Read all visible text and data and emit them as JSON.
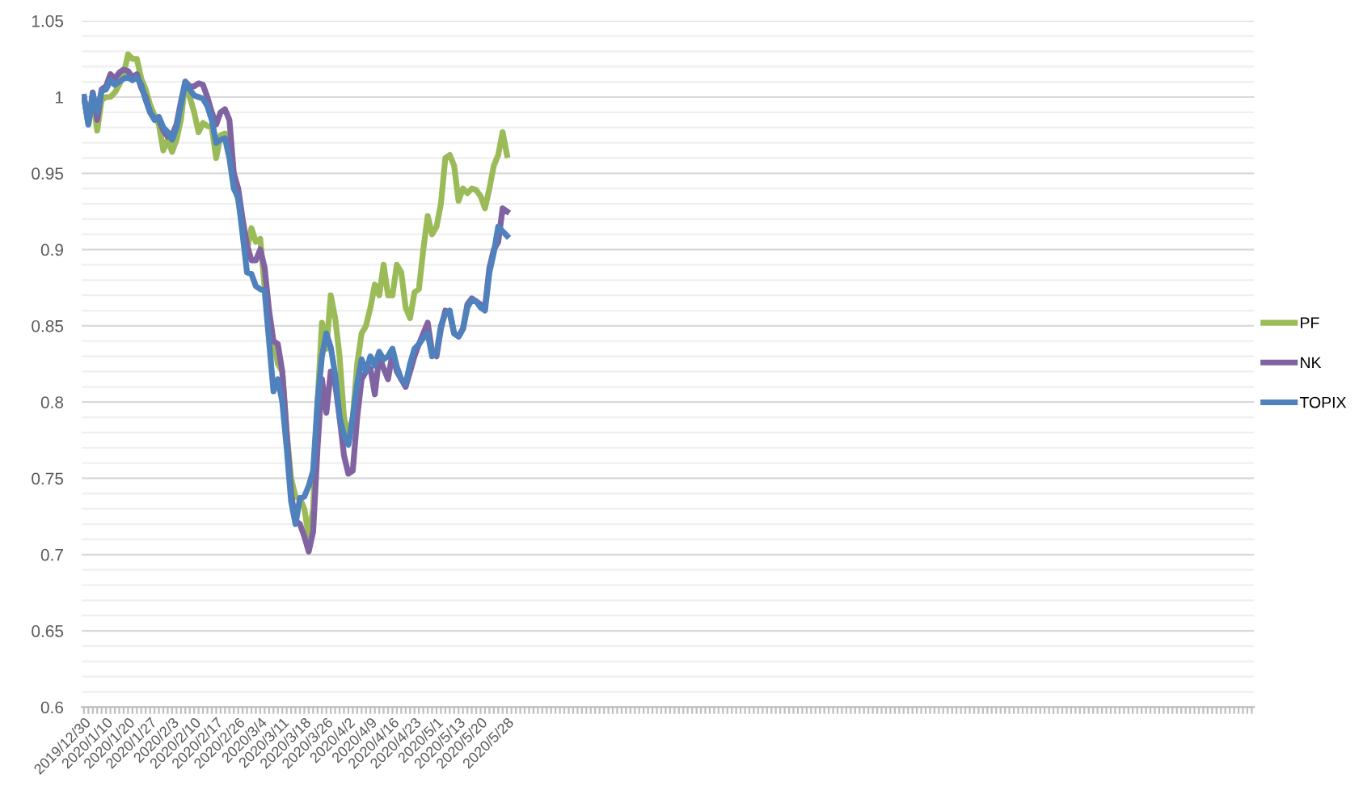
{
  "chart_data": {
    "type": "line",
    "categories": [
      "2019/12/30",
      null,
      null,
      null,
      null,
      "2020/1/10",
      null,
      null,
      null,
      null,
      "2020/1/20",
      null,
      null,
      null,
      null,
      "2020/1/27",
      null,
      null,
      null,
      null,
      "2020/2/3",
      null,
      null,
      null,
      null,
      "2020/2/10",
      null,
      null,
      null,
      null,
      "2020/2/17",
      null,
      null,
      null,
      null,
      "2020/2/26",
      null,
      null,
      null,
      null,
      "2020/3/4",
      null,
      null,
      null,
      null,
      "2020/3/11",
      null,
      null,
      null,
      null,
      "2020/3/18",
      null,
      null,
      null,
      null,
      "2020/3/26",
      null,
      null,
      null,
      null,
      "2020/4/2",
      null,
      null,
      null,
      null,
      "2020/4/9",
      null,
      null,
      null,
      null,
      "2020/4/16",
      null,
      null,
      null,
      null,
      "2020/4/23",
      null,
      null,
      null,
      null,
      "2020/5/1",
      null,
      null,
      null,
      null,
      "2020/5/13",
      null,
      null,
      null,
      null,
      "2020/5/20",
      null,
      null,
      null,
      null,
      null,
      "2020/5/28",
      null,
      null,
      null,
      null,
      null,
      null,
      null,
      null,
      null,
      null,
      null,
      null,
      null,
      null,
      null,
      null,
      null,
      null,
      null,
      null,
      null,
      null,
      null,
      null,
      null,
      null,
      null,
      null,
      null,
      null,
      null,
      null,
      null,
      null,
      null,
      null,
      null,
      null,
      null,
      null,
      null,
      null,
      null,
      null,
      null,
      null,
      null,
      null,
      null,
      null,
      null,
      null,
      null,
      null,
      null,
      null,
      null,
      null,
      null,
      null,
      null,
      null,
      null,
      null,
      null,
      null,
      null,
      null,
      null,
      null,
      null,
      null,
      null,
      null,
      null,
      null,
      null,
      null,
      null,
      null,
      null,
      null,
      null,
      null,
      null,
      null,
      null,
      null,
      null,
      null,
      null,
      null,
      null,
      null,
      null,
      null,
      null,
      null,
      null,
      null,
      null,
      null,
      null,
      null,
      null,
      null,
      null,
      null,
      null,
      null,
      null,
      null,
      null,
      null,
      null,
      null,
      null,
      null,
      null,
      null,
      null,
      null,
      null,
      null,
      null,
      null,
      null,
      null,
      null,
      null,
      null,
      null,
      null,
      null,
      null,
      null,
      null,
      null,
      null,
      null,
      null,
      null,
      null,
      null,
      null,
      null,
      null,
      null,
      null,
      null,
      null,
      null,
      null,
      null,
      null,
      null,
      null,
      null,
      null,
      null,
      null,
      null,
      null,
      null,
      null,
      null,
      null,
      null,
      null
    ],
    "series": [
      {
        "name": "PF",
        "color": "#9bbb59",
        "values": [
          1.0,
          0.982,
          1.0,
          0.978,
          0.998,
          1.0,
          1.0,
          1.003,
          1.008,
          1.015,
          1.028,
          1.025,
          1.025,
          1.012,
          1.005,
          0.995,
          0.988,
          0.982,
          0.965,
          0.972,
          0.964,
          0.972,
          0.985,
          1.01,
          1.0,
          0.99,
          0.977,
          0.983,
          0.981,
          0.98,
          0.96,
          0.975,
          0.976,
          0.97,
          0.945,
          0.932,
          0.915,
          0.9,
          0.914,
          0.905,
          0.907,
          0.875,
          0.85,
          0.84,
          0.825,
          0.82,
          0.78,
          0.75,
          0.738,
          0.737,
          0.73,
          0.712,
          0.73,
          0.8,
          0.852,
          0.835,
          0.87,
          0.855,
          0.83,
          0.79,
          0.777,
          0.79,
          0.825,
          0.845,
          0.85,
          0.862,
          0.877,
          0.87,
          0.89,
          0.87,
          0.87,
          0.89,
          0.885,
          0.862,
          0.855,
          0.872,
          0.874,
          0.9,
          0.922,
          0.91,
          0.915,
          0.93,
          0.96,
          0.962,
          0.955,
          0.932,
          0.94,
          0.937,
          0.94,
          0.939,
          0.935,
          0.927,
          0.94,
          0.955,
          0.962,
          0.977,
          0.962,
          null,
          null,
          null,
          null,
          null,
          null,
          null,
          null,
          null,
          null,
          null,
          null,
          null,
          null,
          null,
          null,
          null,
          null,
          null,
          null,
          null,
          null,
          null,
          null,
          null,
          null,
          null,
          null,
          null,
          null,
          null,
          null,
          null,
          null,
          null,
          null,
          null,
          null,
          null,
          null,
          null,
          null,
          null,
          null,
          null,
          null,
          null,
          null,
          null,
          null,
          null,
          null,
          null,
          null,
          null,
          null,
          null,
          null,
          null,
          null,
          null,
          null,
          null,
          null,
          null,
          null,
          null,
          null,
          null,
          null,
          null,
          null,
          null,
          null,
          null,
          null,
          null,
          null,
          null,
          null,
          null,
          null,
          null,
          null,
          null,
          null,
          null,
          null,
          null,
          null,
          null,
          null,
          null,
          null,
          null,
          null,
          null,
          null,
          null,
          null,
          null,
          null,
          null,
          null,
          null,
          null,
          null,
          null,
          null,
          null,
          null,
          null,
          null,
          null,
          null,
          null,
          null,
          null,
          null,
          null,
          null,
          null,
          null,
          null,
          null,
          null,
          null,
          null,
          null,
          null,
          null,
          null,
          null,
          null,
          null,
          null,
          null,
          null,
          null,
          null,
          null,
          null,
          null,
          null,
          null,
          null,
          null,
          null,
          null,
          null,
          null,
          null,
          null,
          null,
          null,
          null,
          null,
          null,
          null,
          null,
          null,
          null,
          null,
          null,
          null,
          null,
          null,
          null,
          null
        ]
      },
      {
        "name": "NK",
        "color": "#8064a2",
        "values": [
          1.0,
          0.983,
          1.003,
          0.985,
          1.005,
          1.007,
          1.015,
          1.012,
          1.016,
          1.018,
          1.017,
          1.013,
          1.015,
          1.006,
          1.0,
          0.99,
          0.986,
          0.985,
          0.978,
          0.974,
          0.975,
          0.982,
          0.997,
          1.01,
          1.007,
          1.007,
          1.009,
          1.008,
          1.0,
          0.99,
          0.982,
          0.99,
          0.992,
          0.985,
          0.95,
          0.94,
          0.92,
          0.903,
          0.893,
          0.893,
          0.9,
          0.888,
          0.86,
          0.84,
          0.838,
          0.82,
          0.78,
          0.74,
          0.722,
          0.72,
          0.712,
          0.702,
          0.715,
          0.77,
          0.815,
          0.793,
          0.82,
          0.812,
          0.79,
          0.765,
          0.753,
          0.755,
          0.79,
          0.815,
          0.82,
          0.822,
          0.805,
          0.83,
          0.822,
          0.815,
          0.832,
          0.82,
          0.815,
          0.81,
          0.82,
          0.83,
          0.838,
          0.845,
          0.852,
          0.833,
          0.83,
          0.848,
          0.86,
          0.858,
          0.845,
          0.843,
          0.848,
          0.864,
          0.868,
          0.866,
          0.864,
          0.862,
          0.888,
          0.9,
          0.905,
          0.927,
          0.925,
          null,
          null,
          null,
          null,
          null,
          null,
          null,
          null,
          null,
          null,
          null,
          null,
          null,
          null,
          null,
          null,
          null,
          null,
          null,
          null,
          null,
          null,
          null,
          null,
          null,
          null,
          null,
          null,
          null,
          null,
          null,
          null,
          null,
          null,
          null,
          null,
          null,
          null,
          null,
          null,
          null,
          null,
          null,
          null,
          null,
          null,
          null,
          null,
          null,
          null,
          null,
          null,
          null,
          null,
          null,
          null,
          null,
          null,
          null,
          null,
          null,
          null,
          null,
          null,
          null,
          null,
          null,
          null,
          null,
          null,
          null,
          null,
          null,
          null,
          null,
          null,
          null,
          null,
          null,
          null,
          null,
          null,
          null,
          null,
          null,
          null,
          null,
          null,
          null,
          null,
          null,
          null,
          null,
          null,
          null,
          null,
          null,
          null,
          null,
          null,
          null,
          null,
          null,
          null,
          null,
          null,
          null,
          null,
          null,
          null,
          null,
          null,
          null,
          null,
          null,
          null,
          null,
          null,
          null,
          null,
          null,
          null,
          null,
          null,
          null,
          null,
          null,
          null,
          null,
          null,
          null,
          null,
          null,
          null,
          null,
          null,
          null,
          null,
          null,
          null,
          null,
          null,
          null,
          null,
          null,
          null,
          null,
          null,
          null,
          null,
          null,
          null,
          null,
          null,
          null,
          null,
          null,
          null,
          null,
          null,
          null,
          null,
          null,
          null,
          null,
          null,
          null,
          null,
          null
        ]
      },
      {
        "name": "TOPIX",
        "color": "#4f81bd",
        "values": [
          1.0,
          0.982,
          1.002,
          0.99,
          1.004,
          1.005,
          1.011,
          1.008,
          1.01,
          1.012,
          1.013,
          1.011,
          1.013,
          1.008,
          0.998,
          0.99,
          0.985,
          0.987,
          0.98,
          0.977,
          0.972,
          0.98,
          0.995,
          1.01,
          1.005,
          1.001,
          1.0,
          0.999,
          0.994,
          0.985,
          0.97,
          0.972,
          0.973,
          0.96,
          0.94,
          0.934,
          0.91,
          0.885,
          0.884,
          0.876,
          0.874,
          0.873,
          0.84,
          0.807,
          0.815,
          0.8,
          0.77,
          0.735,
          0.72,
          0.737,
          0.738,
          0.745,
          0.755,
          0.8,
          0.83,
          0.845,
          0.836,
          0.818,
          0.79,
          0.778,
          0.772,
          0.79,
          0.812,
          0.828,
          0.82,
          0.83,
          0.824,
          0.833,
          0.828,
          0.83,
          0.835,
          0.823,
          0.815,
          0.812,
          0.825,
          0.835,
          0.838,
          0.842,
          0.845,
          0.83,
          0.832,
          0.85,
          0.858,
          0.86,
          0.845,
          0.843,
          0.848,
          0.862,
          0.867,
          0.866,
          0.862,
          0.86,
          0.885,
          0.898,
          0.915,
          0.912,
          0.909,
          null,
          null,
          null,
          null,
          null,
          null,
          null,
          null,
          null,
          null,
          null,
          null,
          null,
          null,
          null,
          null,
          null,
          null,
          null,
          null,
          null,
          null,
          null,
          null,
          null,
          null,
          null,
          null,
          null,
          null,
          null,
          null,
          null,
          null,
          null,
          null,
          null,
          null,
          null,
          null,
          null,
          null,
          null,
          null,
          null,
          null,
          null,
          null,
          null,
          null,
          null,
          null,
          null,
          null,
          null,
          null,
          null,
          null,
          null,
          null,
          null,
          null,
          null,
          null,
          null,
          null,
          null,
          null,
          null,
          null,
          null,
          null,
          null,
          null,
          null,
          null,
          null,
          null,
          null,
          null,
          null,
          null,
          null,
          null,
          null,
          null,
          null,
          null,
          null,
          null,
          null,
          null,
          null,
          null,
          null,
          null,
          null,
          null,
          null,
          null,
          null,
          null,
          null,
          null,
          null,
          null,
          null,
          null,
          null,
          null,
          null,
          null,
          null,
          null,
          null,
          null,
          null,
          null,
          null,
          null,
          null,
          null,
          null,
          null,
          null,
          null,
          null,
          null,
          null,
          null,
          null,
          null,
          null,
          null,
          null,
          null,
          null,
          null,
          null,
          null,
          null,
          null,
          null,
          null,
          null,
          null,
          null,
          null,
          null,
          null,
          null,
          null,
          null,
          null,
          null,
          null,
          null,
          null,
          null,
          null,
          null,
          null,
          null,
          null,
          null,
          null,
          null,
          null,
          null
        ]
      }
    ],
    "ylim": [
      0.6,
      1.05
    ],
    "yticks": [
      0.6,
      {
        "value": 0.61,
        "label": null
      },
      {
        "value": 0.62,
        "label": null
      },
      {
        "value": 0.63,
        "label": null
      },
      {
        "value": 0.64,
        "label": null
      },
      0.65,
      {
        "value": 0.66,
        "label": null
      },
      {
        "value": 0.67,
        "label": null
      },
      {
        "value": 0.68,
        "label": null
      },
      {
        "value": 0.69,
        "label": null
      },
      0.7,
      {
        "value": 0.71,
        "label": null
      },
      {
        "value": 0.72,
        "label": null
      },
      {
        "value": 0.73,
        "label": null
      },
      {
        "value": 0.74,
        "label": null
      },
      0.75,
      {
        "value": 0.76,
        "label": null
      },
      {
        "value": 0.77,
        "label": null
      },
      {
        "value": 0.78,
        "label": null
      },
      {
        "value": 0.79,
        "label": null
      },
      0.8,
      {
        "value": 0.81,
        "label": null
      },
      {
        "value": 0.82,
        "label": null
      },
      {
        "value": 0.83,
        "label": null
      },
      {
        "value": 0.84,
        "label": null
      },
      0.85,
      {
        "value": 0.86,
        "label": null
      },
      {
        "value": 0.87,
        "label": null
      },
      {
        "value": 0.88,
        "label": null
      },
      {
        "value": 0.89,
        "label": null
      },
      0.9,
      {
        "value": 0.91,
        "label": null
      },
      {
        "value": 0.92,
        "label": null
      },
      {
        "value": 0.93,
        "label": null
      },
      {
        "value": 0.94,
        "label": null
      },
      0.95,
      {
        "value": 0.96,
        "label": null
      },
      {
        "value": 0.97,
        "label": null
      },
      {
        "value": 0.98,
        "label": null
      },
      {
        "value": 0.99,
        "label": null
      },
      1,
      {
        "value": 1.01,
        "label": null
      },
      {
        "value": 1.02,
        "label": null
      },
      {
        "value": 1.03,
        "label": null
      },
      {
        "value": 1.04,
        "label": null
      },
      1.05
    ],
    "grid": "y",
    "legend": "right",
    "marker": "none",
    "line_style": "solid"
  }
}
